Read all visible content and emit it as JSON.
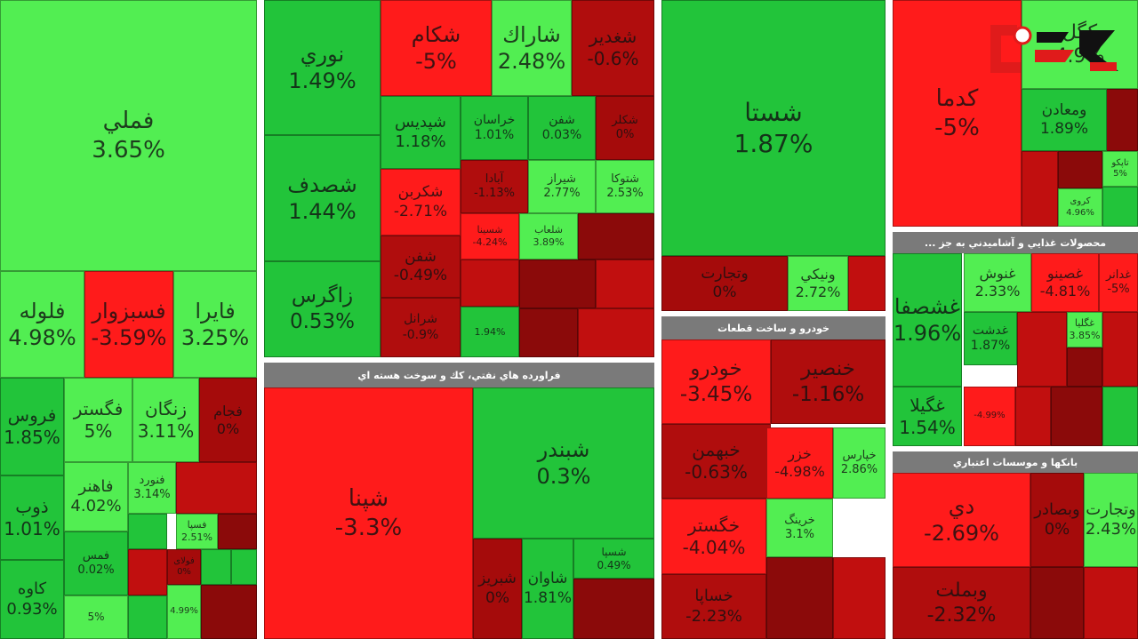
{
  "chart_data": {
    "type": "treemap",
    "color_scale": {
      "positive": "#22c43a",
      "strong_positive": "#52ee52",
      "negative": "#b00d0d",
      "strong_negative": "#ff1b1b"
    },
    "sectors": [
      {
        "name": "",
        "items": [
          {
            "name": "فملي",
            "value": "3.65%"
          },
          {
            "name": "فلوله",
            "value": "4.98%"
          },
          {
            "name": "فسبزوار",
            "value": "-3.59%"
          },
          {
            "name": "فايرا",
            "value": "3.25%"
          },
          {
            "name": "فروس",
            "value": "1.85%"
          },
          {
            "name": "فگستر",
            "value": "5%"
          },
          {
            "name": "زنگان",
            "value": "3.11%"
          },
          {
            "name": "فجام",
            "value": "0%"
          },
          {
            "name": "ذوب",
            "value": "1.01%"
          },
          {
            "name": "فاهنر",
            "value": "4.02%"
          },
          {
            "name": "فنورد",
            "value": "3.14%"
          },
          {
            "name": "فسپا",
            "value": "2.51%"
          },
          {
            "name": "کاوه",
            "value": "0.93%"
          },
          {
            "name": "فمس",
            "value": "0.02%"
          },
          {
            "name": "",
            "value": "5%"
          },
          {
            "name": "فولای",
            "value": "0%"
          },
          {
            "name": "",
            "value": "4.99%"
          }
        ]
      },
      {
        "name": "",
        "items": [
          {
            "name": "نوري",
            "value": "1.49%"
          },
          {
            "name": "شكام",
            "value": "-5%"
          },
          {
            "name": "شاراك",
            "value": "2.48%"
          },
          {
            "name": "شغدير",
            "value": "-0.6%"
          },
          {
            "name": "شپديس",
            "value": "1.18%"
          },
          {
            "name": "خراسان",
            "value": "1.01%"
          },
          {
            "name": "شفن",
            "value": "0.03%"
          },
          {
            "name": "شكلر",
            "value": "0%"
          },
          {
            "name": "شصدف",
            "value": "1.44%"
          },
          {
            "name": "شکربن",
            "value": "-2.71%"
          },
          {
            "name": "آبادا",
            "value": "-1.13%"
          },
          {
            "name": "شیراز",
            "value": "2.77%"
          },
          {
            "name": "شتوکا",
            "value": "2.53%"
          },
          {
            "name": "شسینا",
            "value": "-4.24%"
          },
          {
            "name": "شلعاب",
            "value": "3.89%"
          },
          {
            "name": "زاگرس",
            "value": "0.53%"
          },
          {
            "name": "شفن",
            "value": "-0.49%"
          },
          {
            "name": "",
            "value": "1.94%"
          },
          {
            "name": "شرانل",
            "value": "-0.9%"
          }
        ]
      },
      {
        "name": "فراورده هاي نفتي، كك و سوخت هسته اي",
        "items": [
          {
            "name": "شپنا",
            "value": "-3.3%"
          },
          {
            "name": "شبندر",
            "value": "0.3%"
          },
          {
            "name": "شبریز",
            "value": "0%"
          },
          {
            "name": "شاوان",
            "value": "1.81%"
          },
          {
            "name": "شسپا",
            "value": "0.49%"
          }
        ]
      },
      {
        "name": "",
        "items": [
          {
            "name": "شستا",
            "value": "1.87%"
          },
          {
            "name": "وتجارت",
            "value": "0%"
          },
          {
            "name": "ونيكي",
            "value": "2.72%"
          }
        ]
      },
      {
        "name": "خودرو و ساخت قطعات",
        "items": [
          {
            "name": "خودرو",
            "value": "-3.45%"
          },
          {
            "name": "خنصير",
            "value": "-1.16%"
          },
          {
            "name": "خبهمن",
            "value": "-0.63%"
          },
          {
            "name": "خزر",
            "value": "-4.98%"
          },
          {
            "name": "خپارس",
            "value": "2.86%"
          },
          {
            "name": "خگستر",
            "value": "-4.04%"
          },
          {
            "name": "خرینگ",
            "value": "3.1%"
          },
          {
            "name": "خساپا",
            "value": "-2.23%"
          }
        ]
      },
      {
        "name": "",
        "items": [
          {
            "name": "كدما",
            "value": "-5%"
          },
          {
            "name": "كگل",
            "value": "4.9%"
          },
          {
            "name": "ومعادن",
            "value": "1.89%"
          },
          {
            "name": "تاپکو",
            "value": "5%"
          },
          {
            "name": "کروی",
            "value": "4.96%"
          }
        ]
      },
      {
        "name": "محصولات غذايي و آشاميدني به جز ...",
        "items": [
          {
            "name": "غشصفا",
            "value": "1.96%"
          },
          {
            "name": "غنوش",
            "value": "2.33%"
          },
          {
            "name": "غصينو",
            "value": "-4.81%"
          },
          {
            "name": "غدانر",
            "value": "-5%"
          },
          {
            "name": "غگلیا",
            "value": "3.85%"
          },
          {
            "name": "غدشت",
            "value": "1.87%"
          },
          {
            "name": "غگیلا",
            "value": "1.54%"
          },
          {
            "name": "",
            "value": "-4.99%"
          }
        ]
      },
      {
        "name": "بانكها و موسسات اعتباري",
        "items": [
          {
            "name": "دي",
            "value": "-2.69%"
          },
          {
            "name": "وبصادر",
            "value": "0%"
          },
          {
            "name": "وتجارت",
            "value": "2.43%"
          },
          {
            "name": "وبملت",
            "value": "-2.32%"
          }
        ]
      }
    ]
  }
}
